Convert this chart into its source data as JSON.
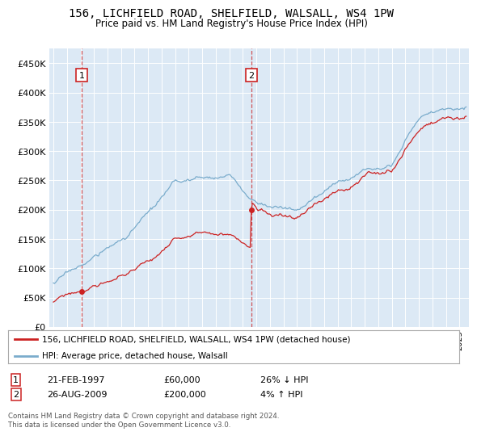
{
  "title_line1": "156, LICHFIELD ROAD, SHELFIELD, WALSALL, WS4 1PW",
  "title_line2": "Price paid vs. HM Land Registry's House Price Index (HPI)",
  "background_color": "#dce9f5",
  "fig_bg_color": "#ffffff",
  "red_color": "#cc2222",
  "blue_color": "#7aaccc",
  "transaction1_year": 1997.13,
  "transaction1_price": 60000,
  "transaction2_year": 2009.65,
  "transaction2_price": 200000,
  "t1_date": "21-FEB-1997",
  "t1_pct": "26% ↓ HPI",
  "t2_date": "26-AUG-2009",
  "t2_pct": "4% ↑ HPI",
  "legend_line1": "156, LICHFIELD ROAD, SHELFIELD, WALSALL, WS4 1PW (detached house)",
  "legend_line2": "HPI: Average price, detached house, Walsall",
  "footnote": "Contains HM Land Registry data © Crown copyright and database right 2024.\nThis data is licensed under the Open Government Licence v3.0.",
  "ylim_min": 0,
  "ylim_max": 475000,
  "yticks": [
    0,
    50000,
    100000,
    150000,
    200000,
    250000,
    300000,
    350000,
    400000,
    450000
  ],
  "ytick_labels": [
    "£0",
    "£50K",
    "£100K",
    "£150K",
    "£200K",
    "£250K",
    "£300K",
    "£350K",
    "£400K",
    "£450K"
  ]
}
